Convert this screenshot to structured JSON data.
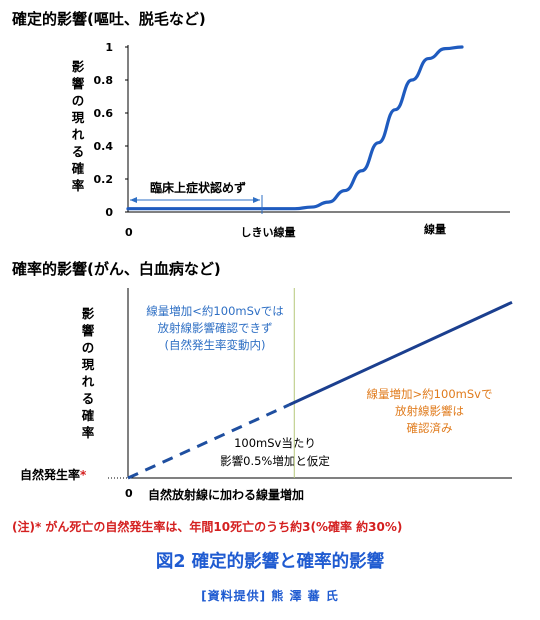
{
  "chart_data": [
    {
      "type": "line",
      "title": "確定的影響(嘔吐、脱毛など)",
      "ylabel": "影響の現れる確率",
      "ylim": [
        0,
        1
      ],
      "y_ticks": [
        "1",
        "0.8",
        "0.6",
        "0.4",
        "0.2",
        "0"
      ],
      "x_ticks": [
        "0",
        "しきい線量",
        "線量"
      ],
      "series": [
        {
          "x": [
            0,
            0.2,
            0.4,
            0.5,
            0.55,
            0.6,
            0.65,
            0.7,
            0.75,
            0.8,
            0.85,
            0.9,
            0.95,
            1.0
          ],
          "y": [
            0.02,
            0.02,
            0.02,
            0.02,
            0.03,
            0.06,
            0.13,
            0.25,
            0.42,
            0.62,
            0.8,
            0.93,
            0.99,
            1.0
          ],
          "color": "#1f5bbf"
        }
      ],
      "annotations": [
        "臨床上症状認めず"
      ]
    },
    {
      "type": "line",
      "title": "確率的影響(がん、白血病など)",
      "ylabel": "影響の現れる確率",
      "x_ticks": [
        "0"
      ],
      "xlabel": "自然放射線に加わる線量増加",
      "y_baseline_label": "自然発生率",
      "y_baseline_marker": "*",
      "series": [
        {
          "style": "dashed",
          "x": [
            0,
            0.42
          ],
          "y": [
            0,
            0.4
          ],
          "color": "#1f4fa0"
        },
        {
          "style": "solid",
          "x": [
            0.42,
            1.0
          ],
          "y": [
            0.4,
            0.96
          ],
          "color": "#1b3f8f"
        }
      ],
      "annotations": {
        "blue": [
          "線量増加<約100mSvでは",
          "放射線影響確認できず",
          "(自然発生率変動内)"
        ],
        "orange": [
          "線量増加>約100mSvで",
          "放射線影響は",
          "確認済み"
        ],
        "black": [
          "100mSv当たり",
          "影響0.5%増加と仮定"
        ]
      }
    }
  ],
  "footnote": "(注)* がん死亡の自然発生率は、年間10死亡のうち約3(%確率 約30%)",
  "figure_caption": "図2 確定的影響と確率的影響",
  "credit": "[資料提供] 熊 澤 蕃 氏",
  "colors": {
    "curve": "#1f5bbf",
    "accent": "#1f5bd1",
    "note": "#d42020",
    "orange": "#e07b1c",
    "divider": "#b5c77a"
  }
}
